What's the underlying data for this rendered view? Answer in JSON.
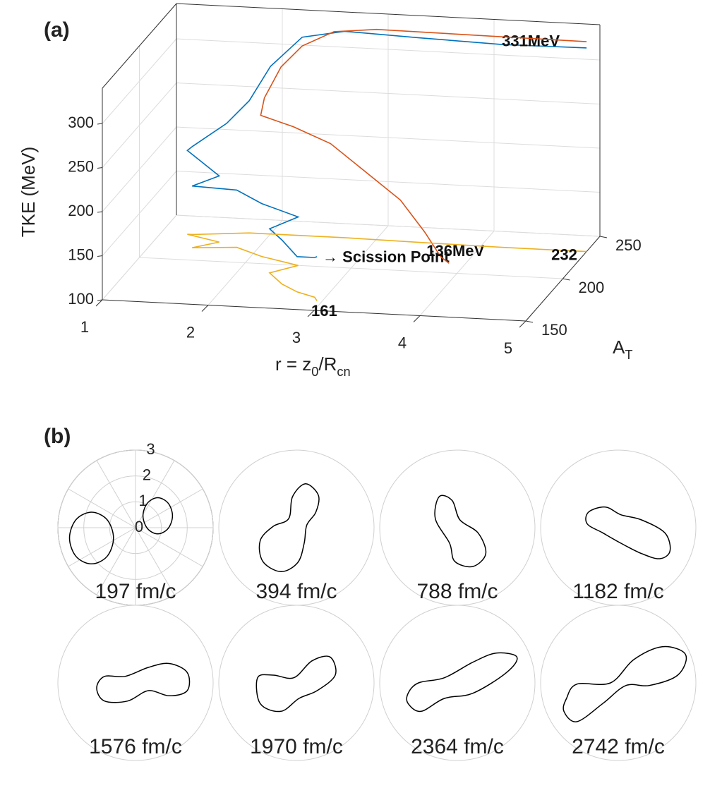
{
  "chart_data": [
    {
      "type": "line3d",
      "label": "(a)",
      "zlabel": "TKE (MeV)",
      "xlabel_parts": [
        "r = z",
        "0",
        "/R",
        "cn"
      ],
      "alabel_parts": [
        "A",
        "T"
      ],
      "xlim": [
        1,
        5
      ],
      "xticks": [
        1,
        2,
        3,
        4,
        5
      ],
      "alim": [
        150,
        250
      ],
      "aticks": [
        150,
        200,
        250
      ],
      "zlim": [
        100,
        340
      ],
      "zticks": [
        100,
        150,
        200,
        250,
        300
      ],
      "grid": true,
      "annotation": "→ Scission Point",
      "series": [
        {
          "color": "#0072bd",
          "x": [
            5,
            4.2,
            3.4,
            2.7,
            2.3,
            2.0,
            1.8,
            1.6,
            1.3,
            1.25,
            1.6,
            1.4,
            1.8,
            2.1,
            2.5,
            2.3,
            2.5,
            2.7,
            2.9,
            2.95
          ],
          "a": [
            232,
            232,
            233,
            234,
            234,
            234,
            234,
            232,
            229,
            229,
            222,
            214,
            217,
            208,
            200,
            190,
            178,
            170,
            165,
            161
          ],
          "values": [
            331,
            330,
            332,
            334,
            325,
            290,
            250,
            225,
            200,
            195,
            175,
            170,
            165,
            160,
            155,
            150,
            150,
            140,
            145,
            150
          ],
          "value_labels": [
            "331MeV",
            null,
            null,
            null,
            null,
            null,
            null,
            null,
            null,
            null,
            null,
            null,
            null,
            null,
            null,
            null,
            null,
            null,
            null,
            null
          ]
        },
        {
          "color": "#d95319",
          "x": [
            5,
            4,
            3,
            2.6,
            2.3,
            2.1,
            1.95,
            1.95,
            2.3,
            2.7,
            3.1,
            3.5,
            3.8,
            4.0,
            4.1
          ],
          "a": [
            232,
            233,
            234,
            234,
            234,
            234,
            233,
            228,
            222,
            215,
            205,
            195,
            185,
            178,
            175
          ],
          "values": [
            338,
            338,
            338,
            333,
            315,
            290,
            255,
            240,
            235,
            225,
            205,
            185,
            160,
            140,
            136
          ],
          "value_labels": [
            null,
            null,
            null,
            null,
            null,
            null,
            null,
            null,
            null,
            null,
            null,
            null,
            null,
            null,
            "136MeV"
          ]
        },
        {
          "color": "#edb120",
          "floor": true,
          "x": [
            5,
            4.2,
            3.4,
            2.7,
            2.3,
            2.0,
            1.8,
            1.6,
            1.3,
            1.25,
            1.6,
            1.4,
            1.8,
            2.1,
            2.5,
            2.3,
            2.5,
            2.7,
            2.9,
            2.95
          ],
          "values": [
            232,
            232,
            233,
            234,
            234,
            234,
            234,
            232,
            229,
            229,
            222,
            214,
            217,
            208,
            200,
            190,
            178,
            170,
            165,
            161
          ],
          "value_labels": [
            "232",
            null,
            null,
            null,
            null,
            null,
            null,
            null,
            null,
            null,
            null,
            null,
            null,
            null,
            null,
            null,
            null,
            null,
            null,
            "161"
          ]
        }
      ]
    },
    {
      "type": "polar",
      "label": "(b)",
      "rlim": [
        0,
        3
      ],
      "rticks": [
        0,
        1,
        2,
        3
      ],
      "thetagrid": [
        0,
        30,
        60,
        90,
        120,
        150,
        180,
        210,
        240,
        270,
        300,
        330
      ],
      "panels": [
        {
          "label": "197 fm/c",
          "x": [
            -0.85,
            -1.1,
            -1.7,
            -2.3,
            -2.55,
            -2.3,
            -1.7,
            -1.1,
            null,
            1.43,
            1.26,
            0.86,
            0.46,
            0.29,
            0.46,
            0.86,
            1.26
          ],
          "y": [
            -0.4,
            0.31,
            0.6,
            0.31,
            -0.4,
            -1.11,
            -1.4,
            -1.11,
            null,
            0.46,
            0.95,
            1.16,
            0.95,
            0.46,
            -0.03,
            -0.24,
            -0.03
          ]
        },
        {
          "label": "394 fm/c",
          "x": [
            0.35,
            0.85,
            0.75,
            0.4,
            0.3,
            0.05,
            -0.6,
            -1.3,
            -1.4,
            -0.9,
            -0.3,
            -0.15
          ],
          "y": [
            1.7,
            1.25,
            0.6,
            0.1,
            -0.6,
            -1.35,
            -1.7,
            -1.3,
            -0.5,
            0.05,
            0.35,
            1.2
          ]
        },
        {
          "label": "788 fm/c",
          "x": [
            -0.7,
            -0.2,
            0.1,
            0.8,
            1.1,
            0.6,
            -0.1,
            -0.3,
            -0.85
          ],
          "y": [
            1.2,
            1.05,
            0.3,
            -0.2,
            -1.0,
            -1.5,
            -1.3,
            -0.6,
            0.35
          ]
        },
        {
          "label": "1182 fm/c",
          "x": [
            -1.15,
            -0.5,
            0.1,
            0.9,
            1.8,
            2.0,
            1.6,
            0.9,
            0.1,
            -0.6,
            -1.2
          ],
          "y": [
            0.6,
            0.8,
            0.5,
            0.3,
            -0.2,
            -0.9,
            -1.2,
            -1.0,
            -0.6,
            -0.2,
            0.15
          ]
        },
        {
          "label": "1576 fm/c",
          "x": [
            -1.5,
            -1.2,
            -0.4,
            0.5,
            1.3,
            2.0,
            2.0,
            1.3,
            0.5,
            -0.3,
            -1.2
          ],
          "y": [
            -0.2,
            0.25,
            0.25,
            0.6,
            0.75,
            0.4,
            -0.3,
            -0.5,
            -0.3,
            -0.7,
            -0.7
          ]
        },
        {
          "label": "1970 fm/c",
          "x": [
            -1.5,
            -0.9,
            -0.1,
            0.6,
            1.3,
            1.5,
            0.8,
            0.1,
            -0.6,
            -1.4
          ],
          "y": [
            0.2,
            0.3,
            0.2,
            0.85,
            1.0,
            0.3,
            -0.3,
            -0.6,
            -1.1,
            -0.8
          ]
        },
        {
          "label": "2364 fm/c",
          "x": [
            -1.9,
            -1.5,
            -0.5,
            0.6,
            1.5,
            2.3,
            1.9,
            0.6,
            -0.5,
            -1.4,
            -1.9
          ],
          "y": [
            -0.4,
            0.0,
            0.2,
            0.8,
            1.15,
            1.0,
            0.4,
            -0.4,
            -0.6,
            -1.1,
            -0.8
          ]
        },
        {
          "label": "2742 fm/c",
          "x": [
            -2.0,
            -1.6,
            -0.3,
            0.6,
            1.7,
            2.6,
            2.3,
            1.2,
            0.3,
            -0.6,
            -1.6,
            -2.1
          ],
          "y": [
            -0.6,
            -0.05,
            0.0,
            0.9,
            1.4,
            1.1,
            0.3,
            -0.1,
            -0.1,
            -0.8,
            -1.5,
            -1.1
          ]
        }
      ]
    }
  ]
}
